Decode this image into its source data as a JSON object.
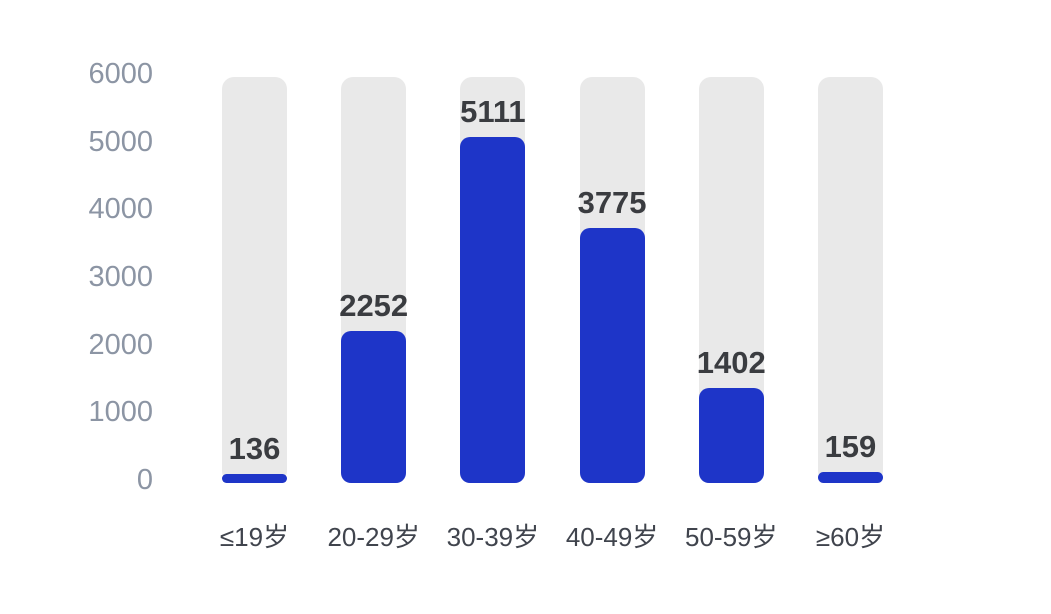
{
  "chart_data": {
    "type": "bar",
    "title": "",
    "xlabel": "",
    "ylabel": "",
    "categories": [
      "≤19岁",
      "20-29岁",
      "30-39岁",
      "40-49岁",
      "50-59岁",
      "≥60岁"
    ],
    "values": [
      136,
      2252,
      5111,
      3775,
      1402,
      159
    ],
    "value_labels": [
      "136",
      "2252",
      "5111",
      "3775",
      "1402",
      "159"
    ],
    "y_ticks": [
      0,
      1000,
      2000,
      3000,
      4000,
      5000,
      6000
    ],
    "y_tick_labels": [
      "0",
      "1000",
      "2000",
      "3000",
      "4000",
      "5000",
      "6000"
    ],
    "ylim": [
      0,
      6000
    ],
    "grid": false,
    "legend": "none",
    "track_max": 6000,
    "colors": {
      "bar_fill": "#1e35c8",
      "bar_track": "#e9e9e9",
      "value_label_text": "#3a3c40",
      "category_label_text": "#40444d",
      "y_tick_text": "#8c95a4",
      "background": "#ffffff"
    }
  }
}
